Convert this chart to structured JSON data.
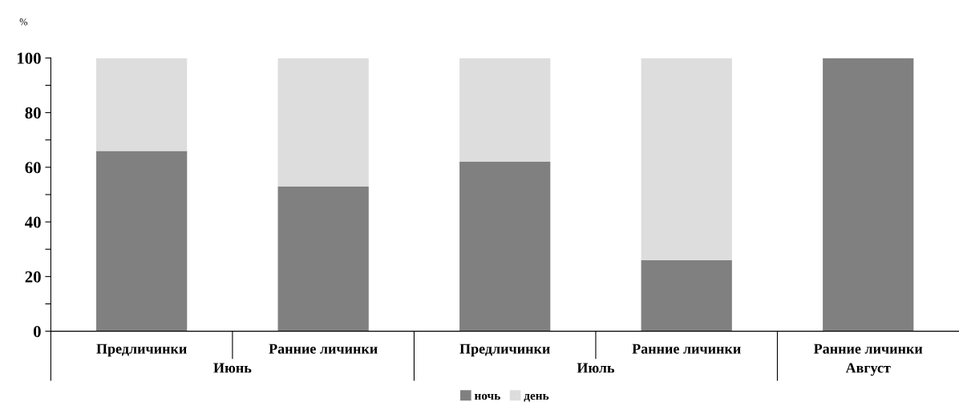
{
  "chart_data": {
    "type": "bar",
    "stacked": true,
    "ylabel": "%",
    "categories": [
      "Предличинки",
      "Ранние личинки",
      "Предличинки",
      "Ранние личинки",
      "Ранние личинки"
    ],
    "annotations": [
      "Июнь",
      "Июль",
      "Август"
    ],
    "series": [
      {
        "name": "ночь",
        "color": "#808080",
        "values": [
          66,
          53,
          62,
          26,
          100
        ]
      },
      {
        "name": "день",
        "color": "#dddddd",
        "values": [
          34,
          47,
          38,
          74,
          0
        ]
      }
    ],
    "ylim": [
      0,
      100
    ],
    "yticks": [
      0,
      {
        "value": 10,
        "label": null
      },
      20,
      {
        "value": 30,
        "label": null
      },
      40,
      {
        "value": 50,
        "label": null
      },
      60,
      {
        "value": 70,
        "label": null
      },
      80,
      {
        "value": 90,
        "label": null
      },
      100
    ],
    "grid": false,
    "legend": "bottom"
  }
}
